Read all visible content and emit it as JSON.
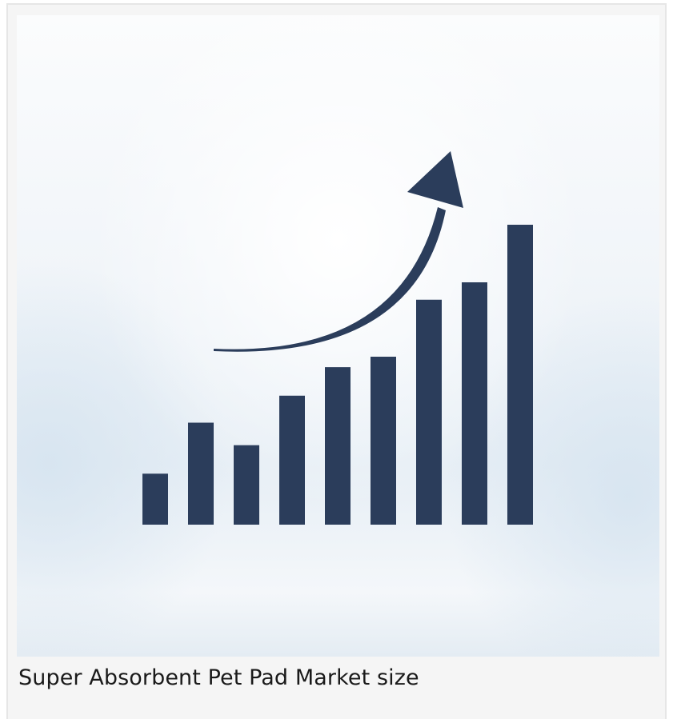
{
  "caption": "Super Absorbent Pet Pad Market size",
  "illustration": {
    "icon": "growth-chart-icon",
    "bar_levels": [
      0.17,
      0.34,
      0.265,
      0.43,
      0.525,
      0.56,
      0.75,
      0.808,
      1.0
    ],
    "colors": {
      "bars": "#2b3d5b",
      "arrow": "#2b3d5b",
      "background_top": "#fbfcfd",
      "background_bottom": "#e4ecf3"
    }
  }
}
